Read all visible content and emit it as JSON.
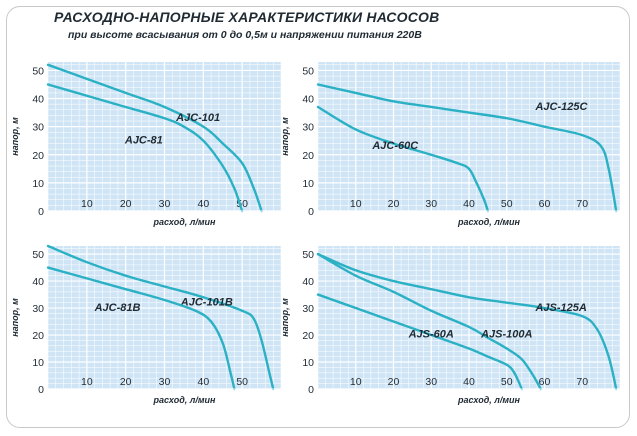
{
  "header": {
    "title": "РАСХОДНО-НАПОРНЫЕ ХАРАКТЕРИСТИКИ НАСОСОВ",
    "subtitle": "при высоте всасывания от 0 до 0,5м и напряжении питания 220В"
  },
  "colors": {
    "plot_bg": "#cfe5f6",
    "grid": "#ffffff",
    "curve": "#2bb0c4",
    "text": "#1f2a33"
  },
  "chart_data": [
    {
      "type": "line",
      "xlabel": "расход, л/мин",
      "ylabel": "напор, м",
      "xlim": [
        0,
        60
      ],
      "ylim": [
        0,
        53
      ],
      "xticks": [
        10,
        20,
        30,
        40,
        50
      ],
      "yticks": [
        0,
        10,
        20,
        30,
        40,
        50
      ],
      "series": [
        {
          "name": "AJC-101",
          "x": [
            0,
            10,
            20,
            30,
            40,
            45,
            50,
            53,
            55
          ],
          "y": [
            52,
            47,
            42,
            37,
            30,
            24,
            17,
            8,
            0
          ]
        },
        {
          "name": "AJC-81",
          "x": [
            0,
            10,
            20,
            30,
            35,
            40,
            45,
            48,
            50
          ],
          "y": [
            45,
            41,
            37,
            33,
            30,
            25,
            16,
            8,
            0
          ]
        }
      ]
    },
    {
      "type": "line",
      "xlabel": "расход, л/мин",
      "ylabel": "напор, м",
      "xlim": [
        0,
        80
      ],
      "ylim": [
        0,
        53
      ],
      "xticks": [
        10,
        20,
        30,
        40,
        50,
        60,
        70
      ],
      "yticks": [
        0,
        10,
        20,
        30,
        40,
        50
      ],
      "series": [
        {
          "name": "AJC-125C",
          "x": [
            0,
            10,
            20,
            30,
            40,
            50,
            60,
            70,
            75,
            77,
            79
          ],
          "y": [
            45,
            42,
            39,
            37,
            35,
            33,
            30,
            27,
            23,
            15,
            0
          ]
        },
        {
          "name": "AJC-60C",
          "x": [
            0,
            10,
            20,
            30,
            37,
            40,
            42,
            44,
            45
          ],
          "y": [
            37,
            29,
            24,
            20,
            17,
            15,
            10,
            4,
            0
          ]
        }
      ]
    },
    {
      "type": "line",
      "xlabel": "расход, л/мин",
      "ylabel": "напор, м",
      "xlim": [
        0,
        60
      ],
      "ylim": [
        0,
        53
      ],
      "xticks": [
        10,
        20,
        30,
        40,
        50
      ],
      "yticks": [
        0,
        10,
        20,
        30,
        40,
        50
      ],
      "series": [
        {
          "name": "AJC-101B",
          "x": [
            0,
            10,
            20,
            30,
            40,
            50,
            53,
            55,
            57,
            58
          ],
          "y": [
            53,
            47,
            42,
            38,
            34,
            29,
            26,
            18,
            6,
            0
          ]
        },
        {
          "name": "AJC-81B",
          "x": [
            0,
            10,
            20,
            30,
            38,
            42,
            45,
            47,
            48
          ],
          "y": [
            45,
            41,
            37,
            33,
            29,
            25,
            17,
            6,
            0
          ]
        }
      ]
    },
    {
      "type": "line",
      "xlabel": "расход, л/мин",
      "ylabel": "напор, м",
      "xlim": [
        0,
        80
      ],
      "ylim": [
        0,
        53
      ],
      "xticks": [
        10,
        20,
        30,
        40,
        50,
        60,
        70
      ],
      "yticks": [
        0,
        10,
        20,
        30,
        40,
        50
      ],
      "series": [
        {
          "name": "AJS-125A",
          "x": [
            0,
            10,
            20,
            30,
            40,
            50,
            60,
            70,
            74,
            77,
            79
          ],
          "y": [
            50,
            44,
            40,
            37,
            34,
            32,
            30,
            27,
            22,
            12,
            0
          ]
        },
        {
          "name": "AJS-100A",
          "x": [
            0,
            10,
            20,
            30,
            40,
            45,
            50,
            54,
            57,
            59
          ],
          "y": [
            50,
            42,
            36,
            29,
            23,
            19,
            15,
            11,
            5,
            0
          ]
        },
        {
          "name": "AJS-60A",
          "x": [
            0,
            10,
            20,
            30,
            40,
            45,
            50,
            52,
            54
          ],
          "y": [
            35,
            30,
            25,
            20,
            15,
            12,
            9,
            6,
            0
          ]
        }
      ]
    }
  ]
}
